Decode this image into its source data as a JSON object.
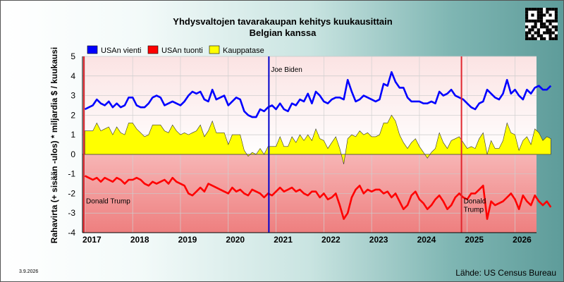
{
  "chart_data": {
    "type": "line",
    "title": "Yhdysvaltojen tavarakaupan kehitys kuukausittain",
    "subtitle": "Belgian kanssa",
    "ylabel": "Rahavirta (+ sisään -ulos) * miljardia $ / kuukausi",
    "xlabel": "",
    "ylim": [
      -4,
      5
    ],
    "yticks": [
      "5",
      "4",
      "3",
      "2",
      "1",
      "0",
      "-1",
      "-2",
      "-3",
      "-4"
    ],
    "xlim": [
      2016.95,
      2026.45
    ],
    "year_ticks": [
      {
        "label": "2017",
        "x": 2017.0
      },
      {
        "label": "2018",
        "x": 2018.0
      },
      {
        "label": "2019",
        "x": 2019.0
      },
      {
        "label": "2020",
        "x": 2020.0
      },
      {
        "label": "2021",
        "x": 2021.0
      },
      {
        "label": "2022",
        "x": 2022.0
      },
      {
        "label": "2023",
        "x": 2023.0
      },
      {
        "label": "2024",
        "x": 2024.0
      },
      {
        "label": "2025",
        "x": 2025.0
      },
      {
        "label": "2026",
        "x": 2026.0
      }
    ],
    "grid": true,
    "legend_position": "top-left",
    "series": [
      {
        "name": "USAn vienti",
        "color": "#0000ff",
        "x_start": 2017.0,
        "x_step": 0.0833333,
        "values": [
          2.3,
          2.4,
          2.5,
          2.8,
          2.6,
          2.5,
          2.7,
          2.4,
          2.6,
          2.4,
          2.5,
          2.9,
          2.9,
          2.5,
          2.4,
          2.4,
          2.6,
          2.9,
          3.0,
          2.9,
          2.5,
          2.6,
          2.7,
          2.6,
          2.5,
          2.7,
          3.0,
          3.2,
          3.1,
          3.2,
          2.8,
          2.7,
          3.3,
          2.8,
          2.9,
          3.0,
          2.5,
          2.7,
          2.9,
          2.8,
          2.2,
          2.0,
          1.9,
          1.9,
          2.3,
          2.2,
          2.4,
          2.5,
          2.3,
          2.6,
          2.3,
          2.2,
          2.6,
          2.5,
          2.8,
          2.7,
          3.1,
          2.6,
          3.2,
          3.0,
          2.7,
          2.6,
          2.8,
          2.9,
          2.9,
          2.8,
          3.8,
          3.2,
          2.7,
          2.8,
          3.0,
          2.9,
          2.8,
          2.7,
          2.8,
          3.6,
          3.5,
          4.2,
          3.7,
          3.4,
          3.4,
          2.9,
          2.7,
          2.7,
          2.7,
          2.6,
          2.6,
          2.7,
          2.6,
          3.2,
          3.0,
          3.1,
          3.3,
          3.0,
          2.9,
          2.8,
          2.6,
          2.4,
          2.3,
          2.6,
          2.7,
          3.3,
          3.1,
          2.9,
          2.8,
          3.1,
          3.8,
          3.1,
          3.3,
          3.0,
          2.8,
          3.3,
          3.1,
          3.4,
          3.5,
          3.3,
          3.3,
          3.5
        ]
      },
      {
        "name": "USAn tuonti",
        "color": "#ff0000",
        "x_start": 2017.0,
        "x_step": 0.0833333,
        "values": [
          -1.1,
          -1.2,
          -1.3,
          -1.2,
          -1.4,
          -1.2,
          -1.3,
          -1.4,
          -1.2,
          -1.3,
          -1.5,
          -1.3,
          -1.3,
          -1.2,
          -1.3,
          -1.5,
          -1.6,
          -1.4,
          -1.5,
          -1.4,
          -1.3,
          -1.5,
          -1.2,
          -1.4,
          -1.5,
          -1.6,
          -2.0,
          -2.1,
          -1.9,
          -1.7,
          -1.9,
          -1.5,
          -1.6,
          -1.7,
          -1.8,
          -1.9,
          -2.0,
          -1.7,
          -1.9,
          -1.8,
          -2.0,
          -2.1,
          -1.8,
          -1.9,
          -2.0,
          -2.2,
          -2.0,
          -2.1,
          -1.9,
          -1.7,
          -1.9,
          -1.8,
          -1.7,
          -1.9,
          -1.8,
          -2.0,
          -2.1,
          -1.9,
          -1.9,
          -2.2,
          -2.0,
          -2.3,
          -2.2,
          -2.0,
          -2.6,
          -3.3,
          -3.0,
          -2.2,
          -1.8,
          -1.6,
          -2.0,
          -1.8,
          -1.9,
          -1.8,
          -1.8,
          -2.0,
          -1.9,
          -2.2,
          -2.0,
          -2.4,
          -2.8,
          -2.6,
          -2.1,
          -1.9,
          -2.3,
          -2.5,
          -2.8,
          -2.6,
          -2.3,
          -2.1,
          -2.4,
          -2.8,
          -2.6,
          -2.2,
          -2.0,
          -2.2,
          -2.3,
          -2.0,
          -2.0,
          -1.8,
          -1.6,
          -3.3,
          -2.4,
          -2.6,
          -2.5,
          -2.4,
          -2.2,
          -2.0,
          -2.3,
          -2.8,
          -2.1,
          -2.4,
          -2.6,
          -2.1,
          -2.4,
          -2.6,
          -2.4,
          -2.7
        ]
      }
    ],
    "area_series": {
      "name": "Kauppatase",
      "color": "#ffff00",
      "edge_color": "#333333"
    },
    "vlines": [
      {
        "x": 2016.98,
        "color": "#e0262e",
        "label": "Donald Trump",
        "label_side": "right",
        "label_y": -2.5
      },
      {
        "x": 2020.85,
        "color": "#0000cc",
        "label": "Joe Biden",
        "label_side": "right",
        "label_y": 4.2
      },
      {
        "x": 2024.88,
        "color": "#e0262e",
        "label": "Donald\nTrump",
        "label_side": "right",
        "label_y": -2.5
      }
    ]
  },
  "date_stamp": "3.9.2026",
  "source": "Lähde: US Census Bureau",
  "qr_icon": "qr-code-icon"
}
